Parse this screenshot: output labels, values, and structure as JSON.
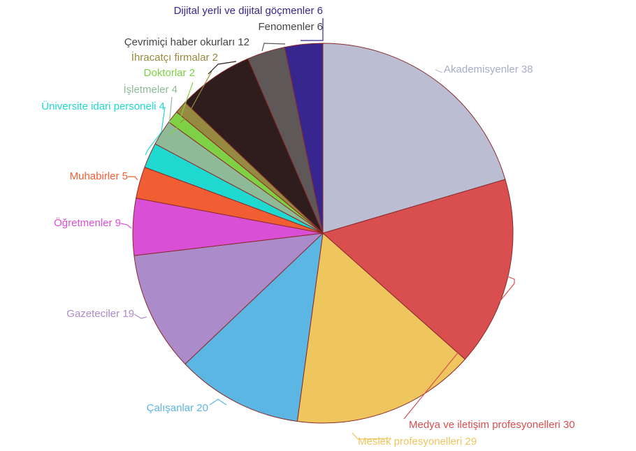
{
  "chart_data": {
    "type": "pie",
    "title": "",
    "start_angle_deg": 0,
    "direction": "clockwise",
    "slices": [
      {
        "label": "Akademisyenler",
        "value": 38,
        "color": "#bbbdd2"
      },
      {
        "label": "Medya ve iletişim profesyonelleri",
        "value": 30,
        "color": "#d94f50"
      },
      {
        "label": "Meslek profesyonelleri",
        "value": 29,
        "color": "#efc55e"
      },
      {
        "label": "Çalışanlar",
        "value": 20,
        "color": "#5cb6e4"
      },
      {
        "label": "Gazeteciler",
        "value": 19,
        "color": "#ab8bc9"
      },
      {
        "label": "Öğretmenler",
        "value": 9,
        "color": "#d94fd6"
      },
      {
        "label": "Muhabirler",
        "value": 5,
        "color": "#f15e33"
      },
      {
        "label": "Üniversite idari personeli",
        "value": 4,
        "color": "#1fd9d1"
      },
      {
        "label": "İşletmeler",
        "value": 4,
        "color": "#8fba97"
      },
      {
        "label": "Doktorlar",
        "value": 2,
        "color": "#7ed044"
      },
      {
        "label": "İhracatçı firmalar",
        "value": 2,
        "color": "#958a3f"
      },
      {
        "label": "Çevrimiçi haber okurları",
        "value": 12,
        "color": "#2f1c1d"
      },
      {
        "label": "Fenomenler",
        "value": 6,
        "color": "#5e5859"
      },
      {
        "label": "Dijital yerli ve dijital göçmenler",
        "value": 6,
        "color": "#38268f"
      }
    ]
  }
}
